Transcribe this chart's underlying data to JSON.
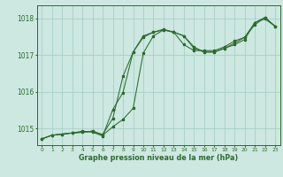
{
  "title": "Graphe pression niveau de la mer (hPa)",
  "bg_color": "#cce8e0",
  "grid_color": "#a8cfc8",
  "line_color": "#2d6b2d",
  "marker_color": "#2d6b2d",
  "ylim": [
    1014.55,
    1018.35
  ],
  "yticks": [
    1015,
    1016,
    1017,
    1018
  ],
  "xlim": [
    -0.5,
    23.5
  ],
  "xticks": [
    0,
    1,
    2,
    3,
    4,
    5,
    6,
    7,
    8,
    9,
    10,
    11,
    12,
    13,
    14,
    15,
    16,
    17,
    18,
    19,
    20,
    21,
    22,
    23
  ],
  "series1": [
    1014.72,
    1014.82,
    1014.85,
    1014.88,
    1014.9,
    1014.93,
    1014.82,
    1015.05,
    1015.25,
    1015.55,
    1017.05,
    1017.52,
    1017.68,
    1017.62,
    1017.52,
    1017.18,
    1017.08,
    1017.08,
    1017.18,
    1017.28,
    1017.42,
    1017.88,
    1017.98,
    1017.78
  ],
  "series2": [
    1014.72,
    1014.82,
    1014.85,
    1014.88,
    1014.9,
    1014.93,
    1014.84,
    1015.28,
    1016.42,
    1017.08,
    1017.48,
    1017.62,
    1017.68,
    1017.62,
    1017.52,
    1017.22,
    1017.08,
    1017.08,
    1017.18,
    1017.32,
    1017.48,
    1017.88,
    1018.02,
    1017.78
  ],
  "series3": [
    1014.72,
    1014.82,
    1014.85,
    1014.88,
    1014.93,
    1014.9,
    1014.8,
    1015.52,
    1015.98,
    1017.08,
    1017.52,
    1017.62,
    1017.7,
    1017.62,
    1017.28,
    1017.12,
    1017.12,
    1017.12,
    1017.22,
    1017.38,
    1017.48,
    1017.82,
    1018.02,
    1017.78
  ],
  "xlabel_fontsize": 5.8,
  "ytick_fontsize": 5.5,
  "xtick_fontsize": 4.3,
  "linewidth": 0.75,
  "markersize": 2.2
}
